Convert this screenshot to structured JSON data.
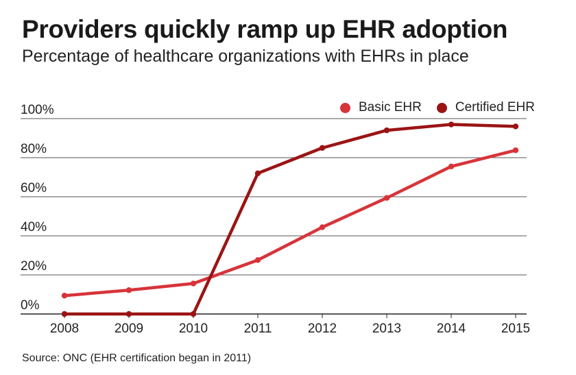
{
  "title": "Providers quickly ramp up EHR adoption",
  "subtitle": "Percentage of healthcare organizations with EHRs in place",
  "source": "Source: ONC (EHR certification began in 2011)",
  "chart_data": {
    "type": "line",
    "title": "Providers quickly ramp up EHR adoption",
    "subtitle": "Percentage of healthcare organizations with EHRs in place",
    "xlabel": "",
    "ylabel": "",
    "x": [
      "2008",
      "2009",
      "2010",
      "2011",
      "2012",
      "2013",
      "2014",
      "2015"
    ],
    "ylim": [
      0,
      100
    ],
    "yticks": [
      0,
      20,
      40,
      60,
      80,
      100
    ],
    "ytick_labels": [
      "0%",
      "20%",
      "40%",
      "60%",
      "80%",
      "100%"
    ],
    "grid": "horizontal",
    "legend_position": "top-right",
    "series": [
      {
        "name": "Basic EHR",
        "color": "#d7343a",
        "values": [
          9.4,
          12.2,
          15.6,
          27.6,
          44.4,
          59.4,
          75.5,
          83.8
        ]
      },
      {
        "name": "Certified EHR",
        "color": "#9b1414",
        "values": [
          0,
          0,
          0,
          72,
          85,
          94,
          97,
          96
        ]
      }
    ]
  }
}
